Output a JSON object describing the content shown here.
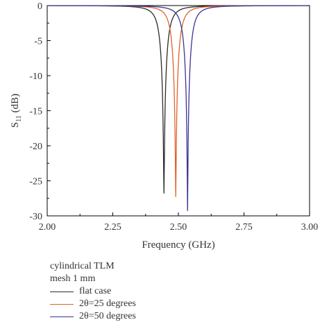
{
  "chart_data": {
    "type": "line",
    "xlabel": "Frequency (GHz)",
    "ylabel_main": "S",
    "ylabel_sub": "11",
    "ylabel_unit": " (dB)",
    "xlim": [
      2.0,
      3.0
    ],
    "ylim": [
      -30,
      0
    ],
    "xticks": [
      "2.00",
      "2.25",
      "2.50",
      "2.75",
      "3.00"
    ],
    "yticks": [
      "0",
      "-5",
      "-10",
      "-15",
      "-20",
      "-25",
      "-30"
    ],
    "grid": false,
    "legend_placement": "bottom-left",
    "series": [
      {
        "name": "flat case",
        "color": "#2b2b2b",
        "resonance_ghz": 2.445,
        "min_db": -26.8
      },
      {
        "name": "2θ=25 degrees",
        "color": "#e0622a",
        "resonance_ghz": 2.49,
        "min_db": -27.3
      },
      {
        "name": "2θ=50 degrees",
        "color": "#3b3294",
        "resonance_ghz": 2.535,
        "min_db": -29.3
      }
    ]
  },
  "legend": {
    "title_line1": "cylindrical TLM",
    "title_line2": "mesh 1 mm"
  }
}
